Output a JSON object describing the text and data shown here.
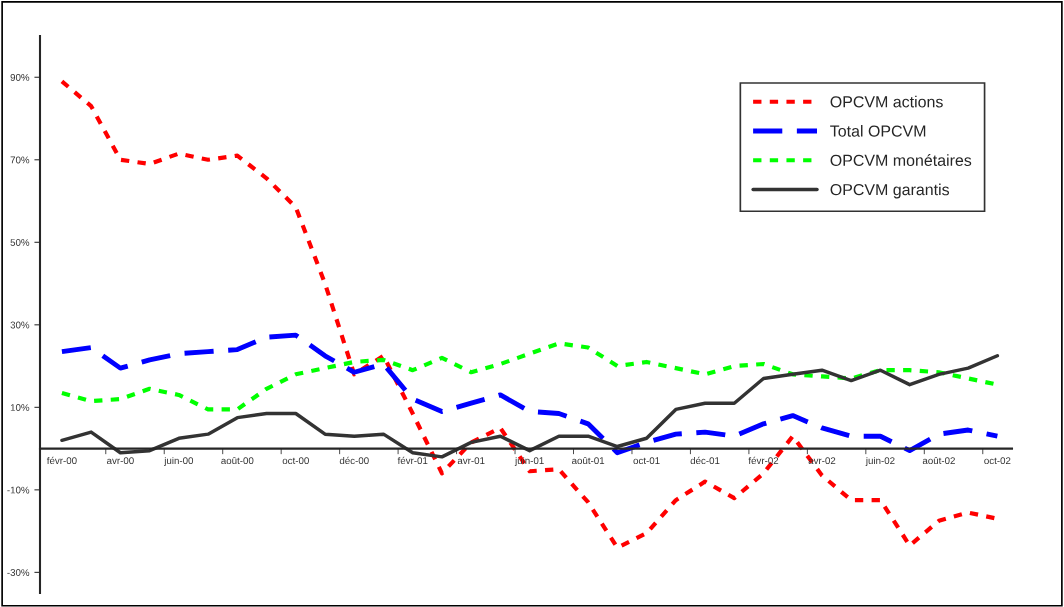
{
  "chart_data": {
    "type": "line",
    "categories": [
      "févr-00",
      null,
      "avr-00",
      null,
      "juin-00",
      null,
      "août-00",
      null,
      "oct-00",
      null,
      "déc-00",
      null,
      "févr-01",
      null,
      "avr-01",
      null,
      "juin-01",
      null,
      "août-01",
      null,
      "oct-01",
      null,
      "déc-01",
      null,
      "févr-02",
      null,
      "avr-02",
      null,
      "juin-02",
      null,
      "août-02",
      null,
      "oct-02"
    ],
    "series": [
      {
        "name": "OPCVM actions",
        "color": "#ff0000",
        "line_style": "dotted",
        "values": [
          89,
          83,
          70,
          69,
          71.5,
          70,
          71,
          65.5,
          58.5,
          40,
          18,
          22.5,
          8.5,
          -6,
          1.5,
          5,
          -5.5,
          -5,
          -13,
          -24,
          -20.5,
          -12.5,
          -8,
          -12,
          -6,
          3,
          -6.5,
          -12.5,
          -12.5,
          -23.5,
          -17.5,
          -15.5,
          -17
        ]
      },
      {
        "name": "Total OPCVM",
        "color": "#0000ff",
        "line_style": "dashed",
        "values": [
          23.5,
          24.5,
          19.5,
          21.5,
          23,
          23.5,
          24,
          27,
          27.5,
          22.5,
          18.5,
          20.5,
          12,
          9,
          11,
          13,
          9,
          8.5,
          6,
          -1,
          1.5,
          3.5,
          4,
          3,
          6,
          8,
          5,
          3,
          3,
          -0.5,
          3.5,
          4.5,
          3
        ]
      },
      {
        "name": "OPCVM monétaires",
        "color": "#00ff00",
        "line_style": "dotted",
        "values": [
          13.5,
          11.5,
          12,
          14.5,
          13,
          9.5,
          9.5,
          14.5,
          18,
          19.5,
          21,
          21.5,
          19,
          22,
          18.5,
          20.5,
          23,
          25.5,
          24.5,
          20,
          21,
          19.5,
          18,
          20,
          20.5,
          18,
          17.5,
          17,
          19,
          19,
          18.5,
          17,
          15.5
        ]
      },
      {
        "name": "OPCVM garantis",
        "color": "#333333",
        "line_style": "solid",
        "values": [
          2,
          4,
          -1,
          -0.5,
          2.5,
          3.5,
          7.5,
          8.5,
          8.5,
          3.5,
          3,
          3.5,
          -1,
          -2,
          1.5,
          3,
          -0.5,
          3,
          3,
          0.5,
          2.5,
          9.5,
          11,
          11,
          17,
          18,
          19,
          16.5,
          19,
          15.5,
          18,
          19.5,
          22.5
        ]
      }
    ],
    "ylim": [
      -35,
      100
    ],
    "yticks": [
      {
        "value": -30,
        "label": "-30%"
      },
      {
        "value": -10,
        "label": "-10%"
      },
      {
        "value": 10,
        "label": "10%"
      },
      {
        "value": 30,
        "label": "30%"
      },
      {
        "value": 50,
        "label": "50%"
      },
      {
        "value": 70,
        "label": "70%"
      },
      {
        "value": 90,
        "label": "90%"
      }
    ],
    "marker": "none",
    "grid": false,
    "legend": "top right"
  }
}
